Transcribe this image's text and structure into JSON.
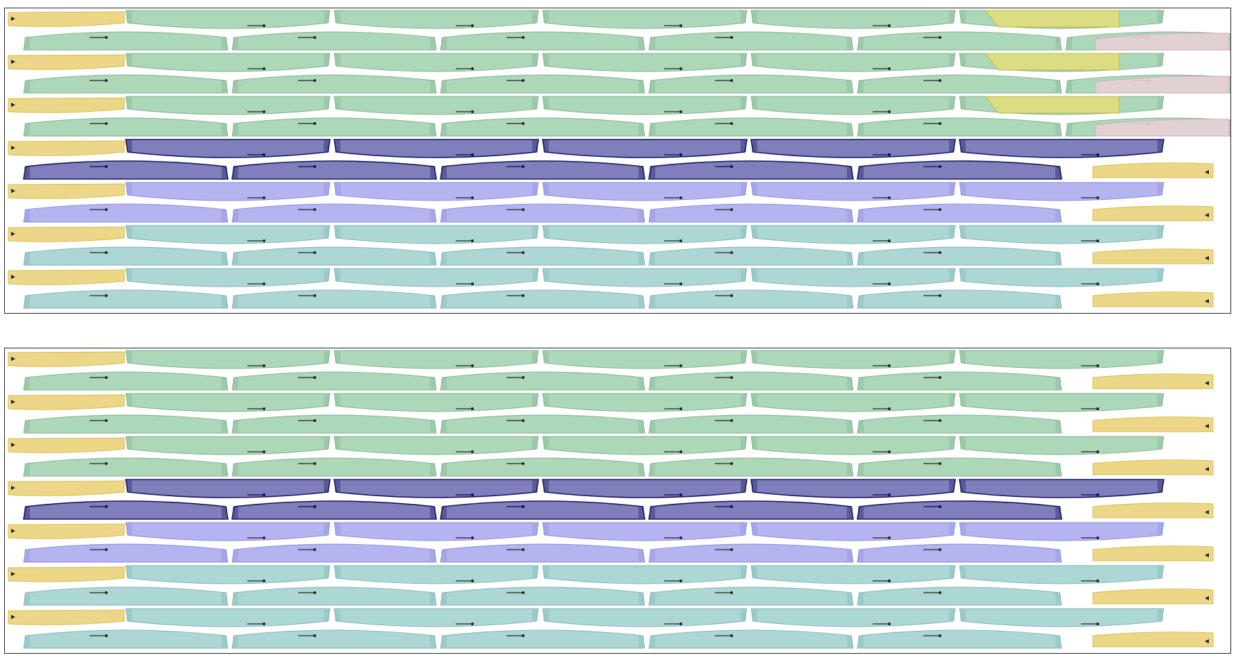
{
  "panels": [
    {
      "id": "top",
      "rows": [
        [
          "cap-left",
          "green",
          "green",
          "green",
          "green",
          "green",
          "olive-tail"
        ],
        [
          "green",
          "green",
          "green",
          "green",
          "green",
          "green",
          "pink-tail"
        ],
        [
          "cap-left",
          "green",
          "green",
          "green",
          "green",
          "green",
          "olive-tail"
        ],
        [
          "green",
          "green",
          "green",
          "green",
          "green",
          "green",
          "pink-tail"
        ],
        [
          "cap-left",
          "green",
          "green",
          "green",
          "green",
          "green",
          "olive-tail"
        ],
        [
          "green",
          "green",
          "green",
          "green",
          "green",
          "green",
          "pink-tail"
        ],
        [
          "cap-left",
          "navy",
          "navy",
          "navy",
          "navy",
          "navy"
        ],
        [
          "navy",
          "navy",
          "navy",
          "navy",
          "navy",
          "cap-right"
        ],
        [
          "cap-left",
          "lavender",
          "lavender",
          "lavender",
          "lavender",
          "lavender"
        ],
        [
          "lavender",
          "lavender",
          "lavender",
          "lavender",
          "lavender",
          "cap-right"
        ],
        [
          "cap-left",
          "teal",
          "teal",
          "teal",
          "teal",
          "teal"
        ],
        [
          "teal",
          "teal",
          "teal",
          "teal",
          "teal",
          "cap-right"
        ],
        [
          "cap-left",
          "teal",
          "teal",
          "teal",
          "teal",
          "teal"
        ],
        [
          "teal",
          "teal",
          "teal",
          "teal",
          "teal",
          "cap-right"
        ]
      ]
    },
    {
      "id": "bottom",
      "rows": [
        [
          "cap-left",
          "green",
          "green",
          "green",
          "green",
          "green"
        ],
        [
          "green",
          "green",
          "green",
          "green",
          "green",
          "cap-right"
        ],
        [
          "cap-left",
          "green",
          "green",
          "green",
          "green",
          "green"
        ],
        [
          "green",
          "green",
          "green",
          "green",
          "green",
          "cap-right"
        ],
        [
          "cap-left",
          "green",
          "green",
          "green",
          "green",
          "green"
        ],
        [
          "green",
          "green",
          "green",
          "green",
          "green",
          "cap-right"
        ],
        [
          "cap-left",
          "navy",
          "navy",
          "navy",
          "navy",
          "navy"
        ],
        [
          "navy",
          "navy",
          "navy",
          "navy",
          "navy",
          "cap-right"
        ],
        [
          "cap-left",
          "lavender",
          "lavender",
          "lavender",
          "lavender",
          "lavender"
        ],
        [
          "lavender",
          "lavender",
          "lavender",
          "lavender",
          "lavender",
          "cap-right"
        ],
        [
          "cap-left",
          "teal",
          "teal",
          "teal",
          "teal",
          "teal"
        ],
        [
          "teal",
          "teal",
          "teal",
          "teal",
          "teal",
          "cap-right"
        ],
        [
          "cap-left",
          "teal",
          "teal",
          "teal",
          "teal",
          "teal"
        ],
        [
          "teal",
          "teal",
          "teal",
          "teal",
          "teal",
          "cap-right"
        ]
      ]
    }
  ],
  "palette": {
    "green": {
      "fill": "#a8d5b5",
      "stroke": "#7fb08e"
    },
    "navy": {
      "fill": "#7878b8",
      "stroke": "#16165e"
    },
    "lavender": {
      "fill": "#b0b0f0",
      "stroke": "#8a8ad8"
    },
    "teal": {
      "fill": "#a8d5d3",
      "stroke": "#7fb3b1"
    },
    "gold": {
      "fill": "#ecd788",
      "stroke": "#d8b94a"
    },
    "olive": {
      "fill": "#dcdc82",
      "stroke": "#b8b84a"
    },
    "pink": {
      "fill": "#e8d0d6",
      "stroke": "#cfaab4"
    }
  }
}
